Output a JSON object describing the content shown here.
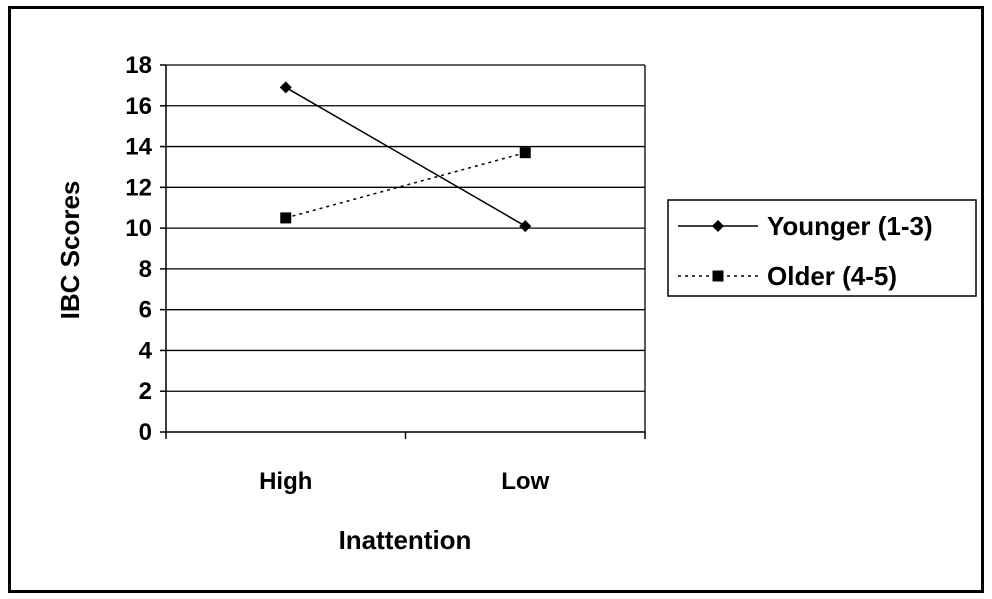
{
  "chart_data": {
    "type": "line",
    "categories": [
      "High",
      "Low"
    ],
    "series": [
      {
        "name": "Younger (1-3)",
        "values": [
          16.9,
          10.1
        ],
        "line_style": "solid",
        "marker": "diamond"
      },
      {
        "name": "Older (4-5)",
        "values": [
          10.5,
          13.7
        ],
        "line_style": "dotted",
        "marker": "square"
      }
    ],
    "xlabel": "Inattention",
    "ylabel": "IBC Scores",
    "ylim": [
      0,
      18
    ],
    "yticks": [
      0,
      2,
      4,
      6,
      8,
      10,
      12,
      14,
      16,
      18
    ],
    "grid": "horizontal",
    "legend_position": "right",
    "colors": {
      "line": "#000000",
      "background": "#ffffff"
    }
  }
}
